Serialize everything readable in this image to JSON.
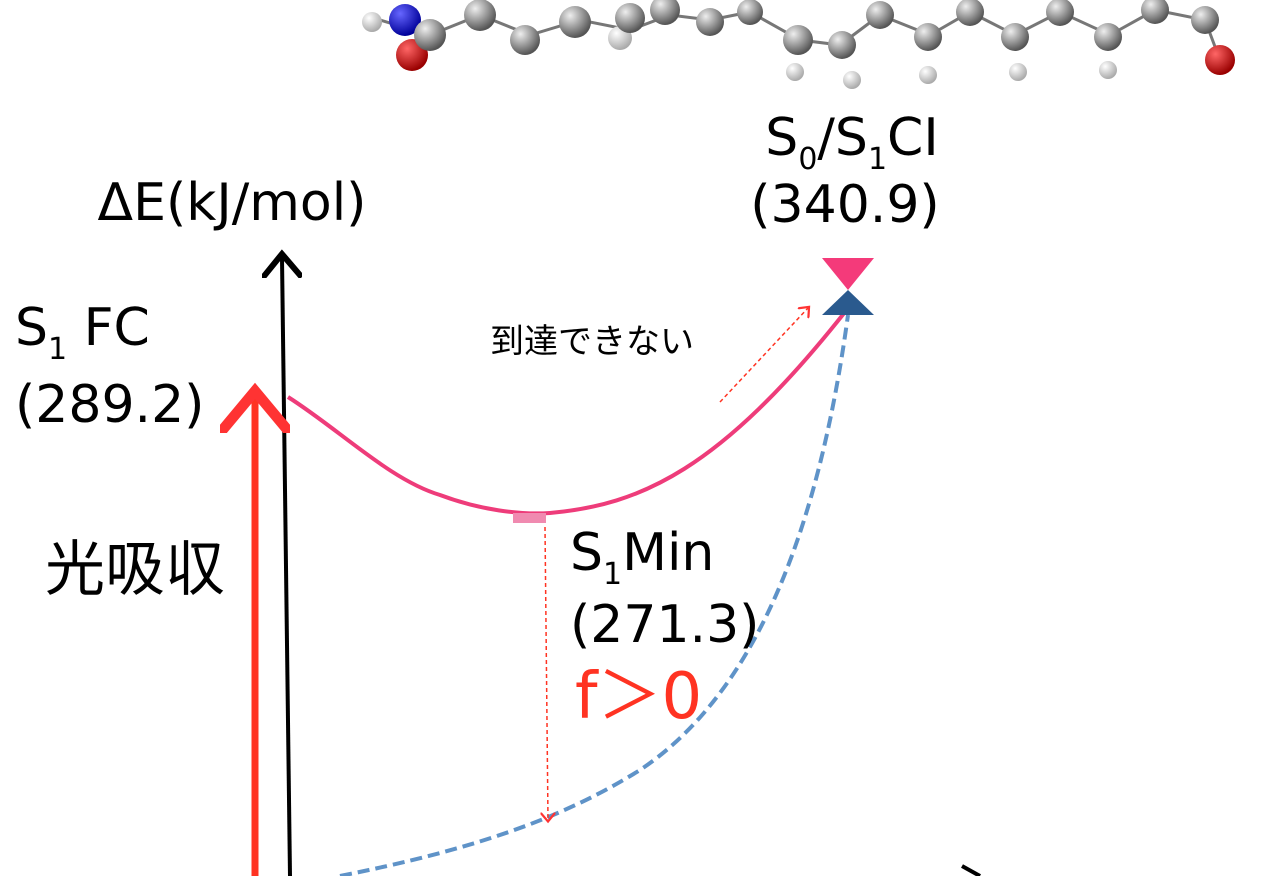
{
  "y_axis": {
    "label": "ΔE(kJ/mol)"
  },
  "excitation": {
    "label": "光吸収"
  },
  "states": [
    {
      "name_parts": [
        "S",
        "0",
        "/S",
        "1",
        "CI"
      ],
      "energy": "(340.9)"
    },
    {
      "name_parts": [
        "S",
        "1",
        " FC"
      ],
      "energy": "(289.2)"
    },
    {
      "name_parts": [
        "S",
        "1",
        "Min"
      ],
      "energy": "(271.3)",
      "note": "f＞0"
    }
  ],
  "annotations": {
    "unreachable": "到達できない"
  }
}
